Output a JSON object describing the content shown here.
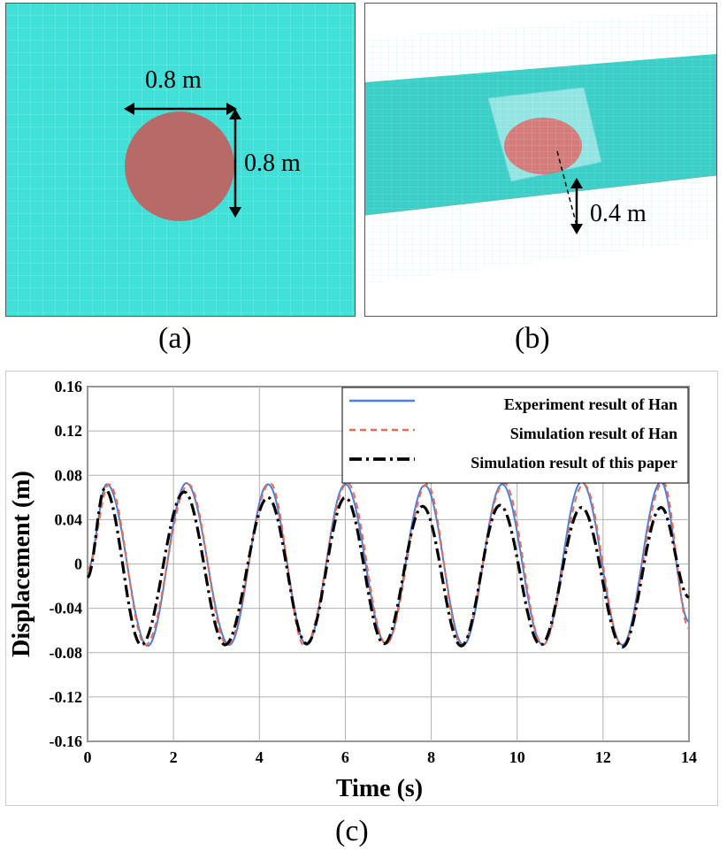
{
  "panel_a": {
    "caption": "(a)",
    "width_label": "0.8 m",
    "height_label": "0.8 m",
    "colors": {
      "water": "#40e0d8",
      "body": "#b76a68",
      "grid": "#c8f4f2"
    }
  },
  "panel_b": {
    "caption": "(b)",
    "depth_label": "0.4 m",
    "colors": {
      "water": "#3ccfc8",
      "body": "#e06a68",
      "mesh": "#a8eaf0"
    }
  },
  "panel_c": {
    "caption": "(c)"
  },
  "chart_data": {
    "type": "line",
    "title": "",
    "xlabel": "Time (s)",
    "ylabel": "Displacement (m)",
    "xlim": [
      0,
      14
    ],
    "ylim": [
      -0.16,
      0.16
    ],
    "x_ticks": [
      0,
      2,
      4,
      6,
      8,
      10,
      12,
      14
    ],
    "y_ticks": [
      -0.16,
      -0.12,
      -0.08,
      -0.04,
      0,
      0.04,
      0.08,
      0.12,
      0.16
    ],
    "x_tick_labels": [
      "0",
      "2",
      "4",
      "6",
      "8",
      "10",
      "12",
      "14"
    ],
    "y_tick_labels": [
      "-0.16",
      "-0.12",
      "-0.08",
      "-0.04",
      "0",
      "0.04",
      "0.08",
      "0.12",
      "0.16"
    ],
    "grid": true,
    "legend_position": "top-right",
    "series": [
      {
        "name": "Experiment result of Han",
        "color": "#4a7fd8",
        "style": "solid",
        "x": [
          0,
          0.45,
          1.4,
          2.3,
          3.3,
          4.2,
          5.1,
          6.0,
          6.95,
          7.85,
          8.75,
          9.65,
          10.6,
          11.5,
          12.45,
          13.35,
          14.0
        ],
        "y": [
          -0.005,
          0.072,
          -0.074,
          0.073,
          -0.073,
          0.072,
          -0.073,
          0.072,
          -0.072,
          0.071,
          -0.073,
          0.072,
          -0.073,
          0.074,
          -0.073,
          0.074,
          -0.052
        ]
      },
      {
        "name": "Simulation result of Han",
        "color": "#f06a50",
        "style": "dashed",
        "x": [
          0,
          0.5,
          1.35,
          2.35,
          3.25,
          4.25,
          5.05,
          6.05,
          6.95,
          7.9,
          8.7,
          9.7,
          10.6,
          11.55,
          12.45,
          13.4,
          14.0
        ],
        "y": [
          -0.005,
          0.072,
          -0.073,
          0.072,
          -0.073,
          0.073,
          -0.074,
          0.073,
          -0.072,
          0.072,
          -0.073,
          0.073,
          -0.073,
          0.072,
          -0.074,
          0.074,
          -0.058
        ]
      },
      {
        "name": "Simulation result of this paper",
        "color": "#000000",
        "style": "dashdot",
        "x": [
          0,
          0.4,
          1.25,
          2.25,
          3.2,
          4.2,
          5.1,
          6.0,
          6.9,
          7.8,
          8.7,
          9.6,
          10.55,
          11.5,
          12.45,
          13.35,
          14.0
        ],
        "y": [
          -0.012,
          0.068,
          -0.073,
          0.065,
          -0.073,
          0.06,
          -0.072,
          0.06,
          -0.072,
          0.052,
          -0.074,
          0.053,
          -0.073,
          0.051,
          -0.075,
          0.051,
          -0.03
        ]
      }
    ]
  }
}
